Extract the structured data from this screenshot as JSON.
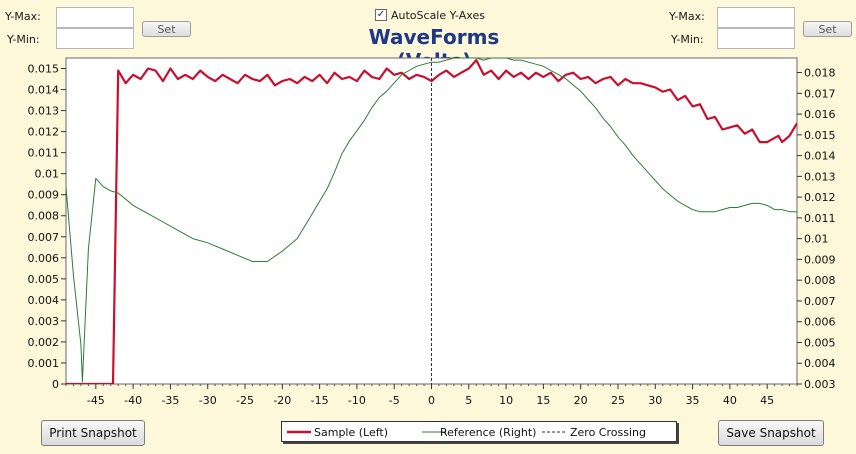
{
  "controls": {
    "left": {
      "ymax_label": "Y-Max:",
      "ymin_label": "Y-Min:",
      "set_label": "Set"
    },
    "right": {
      "ymax_label": "Y-Max:",
      "ymin_label": "Y-Min:",
      "set_label": "Set"
    },
    "autoscale": {
      "label": "AutoScale Y-Axes",
      "checked": true
    }
  },
  "buttons": {
    "print_label": "Print Snapshot",
    "save_label": "Save Snapshot"
  },
  "colors": {
    "sample": "#c8102e",
    "reference": "#2e7d32",
    "zero": "#333333",
    "plot_bg": "#ffffff",
    "title": "#203787"
  },
  "chart_data": {
    "type": "line",
    "title": "WaveForms (Volts)",
    "x_range": [
      -49,
      49
    ],
    "y_left_range": [
      0,
      0.0155
    ],
    "y_right_range": [
      0.003,
      0.0187
    ],
    "x_ticks": [
      -45,
      -40,
      -35,
      -30,
      -25,
      -20,
      -15,
      -10,
      -5,
      0,
      5,
      10,
      15,
      20,
      25,
      30,
      35,
      40,
      45
    ],
    "y_left_ticks": [
      0,
      0.001,
      0.002,
      0.003,
      0.004,
      0.005,
      0.006,
      0.007,
      0.008,
      0.009,
      0.01,
      0.011,
      0.012,
      0.013,
      0.014,
      0.015
    ],
    "y_left_tick_labels": [
      "0",
      "0.001",
      "0.002",
      "0.003",
      "0.004",
      "0.005",
      "0.006",
      "0.007",
      "0.008",
      "0.009",
      "0.01",
      "0.011",
      "0.012",
      "0.013",
      "0.014",
      "0.015"
    ],
    "y_right_ticks": [
      0.003,
      0.004,
      0.005,
      0.006,
      0.007,
      0.008,
      0.009,
      0.01,
      0.011,
      0.012,
      0.013,
      0.014,
      0.015,
      0.016,
      0.017,
      0.018
    ],
    "y_right_tick_labels": [
      "0.003",
      "0.004",
      "0.005",
      "0.006",
      "0.007",
      "0.008",
      "0.009",
      "0.01",
      "0.011",
      "0.012",
      "0.013",
      "0.014",
      "0.015",
      "0.016",
      "0.017",
      "0.018"
    ],
    "legend": [
      "Sample (Left)",
      "Reference (Right)",
      "Zero Crossing"
    ],
    "series": [
      {
        "name": "Sample (Left)",
        "axis": "left",
        "color": "#c8102e",
        "points": [
          [
            -49,
            0
          ],
          [
            -43,
            0
          ],
          [
            -42.7,
            0
          ],
          [
            -42,
            0.0149
          ],
          [
            -41,
            0.0143
          ],
          [
            -40,
            0.0147
          ],
          [
            -39,
            0.0145
          ],
          [
            -38,
            0.015
          ],
          [
            -37,
            0.0149
          ],
          [
            -36,
            0.0144
          ],
          [
            -35,
            0.015
          ],
          [
            -34,
            0.0145
          ],
          [
            -33,
            0.0147
          ],
          [
            -32,
            0.0145
          ],
          [
            -31,
            0.0149
          ],
          [
            -30,
            0.0146
          ],
          [
            -29,
            0.0144
          ],
          [
            -28,
            0.0147
          ],
          [
            -27,
            0.0145
          ],
          [
            -26,
            0.0143
          ],
          [
            -25,
            0.0147
          ],
          [
            -24,
            0.0145
          ],
          [
            -23,
            0.0144
          ],
          [
            -22,
            0.0147
          ],
          [
            -21,
            0.0142
          ],
          [
            -20,
            0.0144
          ],
          [
            -19,
            0.0145
          ],
          [
            -18,
            0.0143
          ],
          [
            -17,
            0.0146
          ],
          [
            -16,
            0.0144
          ],
          [
            -15,
            0.0147
          ],
          [
            -14,
            0.0143
          ],
          [
            -13,
            0.0148
          ],
          [
            -12,
            0.0145
          ],
          [
            -11,
            0.0146
          ],
          [
            -10,
            0.0144
          ],
          [
            -9,
            0.0149
          ],
          [
            -8,
            0.0146
          ],
          [
            -7,
            0.0145
          ],
          [
            -6,
            0.015
          ],
          [
            -5,
            0.0147
          ],
          [
            -4,
            0.0148
          ],
          [
            -3,
            0.0145
          ],
          [
            -2,
            0.0147
          ],
          [
            -1,
            0.0146
          ],
          [
            0,
            0.0144
          ],
          [
            1,
            0.0147
          ],
          [
            2,
            0.0149
          ],
          [
            3,
            0.0146
          ],
          [
            4,
            0.0148
          ],
          [
            5,
            0.015
          ],
          [
            6,
            0.0154
          ],
          [
            7,
            0.0147
          ],
          [
            8,
            0.0149
          ],
          [
            9,
            0.0145
          ],
          [
            10,
            0.0149
          ],
          [
            11,
            0.0146
          ],
          [
            12,
            0.0148
          ],
          [
            13,
            0.0145
          ],
          [
            14,
            0.0148
          ],
          [
            15,
            0.0146
          ],
          [
            16,
            0.0148
          ],
          [
            17,
            0.0144
          ],
          [
            18,
            0.0147
          ],
          [
            19,
            0.0148
          ],
          [
            20,
            0.0145
          ],
          [
            21,
            0.0146
          ],
          [
            22,
            0.0143
          ],
          [
            23,
            0.0145
          ],
          [
            24,
            0.0146
          ],
          [
            25,
            0.0142
          ],
          [
            26,
            0.0145
          ],
          [
            27,
            0.0143
          ],
          [
            28,
            0.0143
          ],
          [
            29,
            0.0142
          ],
          [
            30,
            0.0141
          ],
          [
            31,
            0.0139
          ],
          [
            32,
            0.014
          ],
          [
            33,
            0.0135
          ],
          [
            34,
            0.0137
          ],
          [
            35,
            0.0132
          ],
          [
            36,
            0.0133
          ],
          [
            37,
            0.0126
          ],
          [
            38,
            0.0127
          ],
          [
            39,
            0.0121
          ],
          [
            40,
            0.0122
          ],
          [
            41,
            0.0123
          ],
          [
            42,
            0.0119
          ],
          [
            43,
            0.0121
          ],
          [
            44,
            0.0115
          ],
          [
            45,
            0.0115
          ],
          [
            46,
            0.0117
          ],
          [
            46.5,
            0.0118
          ],
          [
            47,
            0.0115
          ],
          [
            48,
            0.0118
          ],
          [
            49,
            0.0124
          ]
        ]
      },
      {
        "name": "Reference (Right)",
        "axis": "right",
        "color": "#2e7d32",
        "points": [
          [
            -49,
            0.0125
          ],
          [
            -48,
            0.0082
          ],
          [
            -47,
            0.0049
          ],
          [
            -46.8,
            0.0031
          ],
          [
            -46,
            0.0095
          ],
          [
            -45,
            0.0129
          ],
          [
            -44,
            0.0125
          ],
          [
            -43,
            0.0123
          ],
          [
            -42,
            0.0122
          ],
          [
            -41,
            0.0119
          ],
          [
            -40,
            0.0116
          ],
          [
            -38,
            0.0112
          ],
          [
            -36,
            0.0108
          ],
          [
            -34,
            0.0104
          ],
          [
            -32,
            0.01
          ],
          [
            -30,
            0.0098
          ],
          [
            -28,
            0.0095
          ],
          [
            -26,
            0.0092
          ],
          [
            -24,
            0.0089
          ],
          [
            -22,
            0.0089
          ],
          [
            -20,
            0.0094
          ],
          [
            -18,
            0.01
          ],
          [
            -17,
            0.0106
          ],
          [
            -16,
            0.0112
          ],
          [
            -15,
            0.0118
          ],
          [
            -14,
            0.0124
          ],
          [
            -13,
            0.0132
          ],
          [
            -12,
            0.0141
          ],
          [
            -11,
            0.0147
          ],
          [
            -10,
            0.0152
          ],
          [
            -9,
            0.0157
          ],
          [
            -8,
            0.0163
          ],
          [
            -7,
            0.0168
          ],
          [
            -6,
            0.0171
          ],
          [
            -5,
            0.0175
          ],
          [
            -4,
            0.0179
          ],
          [
            -3,
            0.0181
          ],
          [
            -2,
            0.0183
          ],
          [
            -1,
            0.0184
          ],
          [
            0,
            0.0185
          ],
          [
            1,
            0.0185
          ],
          [
            2,
            0.0186
          ],
          [
            3,
            0.0187
          ],
          [
            4,
            0.0187
          ],
          [
            5,
            0.0187
          ],
          [
            6,
            0.0187
          ],
          [
            7,
            0.0186
          ],
          [
            8,
            0.0187
          ],
          [
            9,
            0.0187
          ],
          [
            10,
            0.0187
          ],
          [
            11,
            0.0186
          ],
          [
            12,
            0.0186
          ],
          [
            13,
            0.0185
          ],
          [
            14,
            0.0184
          ],
          [
            15,
            0.0183
          ],
          [
            16,
            0.0181
          ],
          [
            17,
            0.0179
          ],
          [
            18,
            0.0177
          ],
          [
            19,
            0.0174
          ],
          [
            20,
            0.0171
          ],
          [
            21,
            0.0167
          ],
          [
            22,
            0.0163
          ],
          [
            23,
            0.0158
          ],
          [
            24,
            0.0154
          ],
          [
            25,
            0.0149
          ],
          [
            26,
            0.0145
          ],
          [
            27,
            0.014
          ],
          [
            28,
            0.0136
          ],
          [
            29,
            0.0132
          ],
          [
            30,
            0.0128
          ],
          [
            31,
            0.0124
          ],
          [
            32,
            0.0121
          ],
          [
            33,
            0.0118
          ],
          [
            34,
            0.0116
          ],
          [
            35,
            0.0114
          ],
          [
            36,
            0.0113
          ],
          [
            37,
            0.0113
          ],
          [
            38,
            0.0113
          ],
          [
            39,
            0.0114
          ],
          [
            40,
            0.0115
          ],
          [
            41,
            0.0115
          ],
          [
            42,
            0.0116
          ],
          [
            43,
            0.0117
          ],
          [
            44,
            0.0117
          ],
          [
            45,
            0.0116
          ],
          [
            46,
            0.0114
          ],
          [
            47,
            0.0114
          ],
          [
            48,
            0.0113
          ],
          [
            49,
            0.0113
          ]
        ]
      }
    ],
    "zero_crossing_x": 0
  }
}
